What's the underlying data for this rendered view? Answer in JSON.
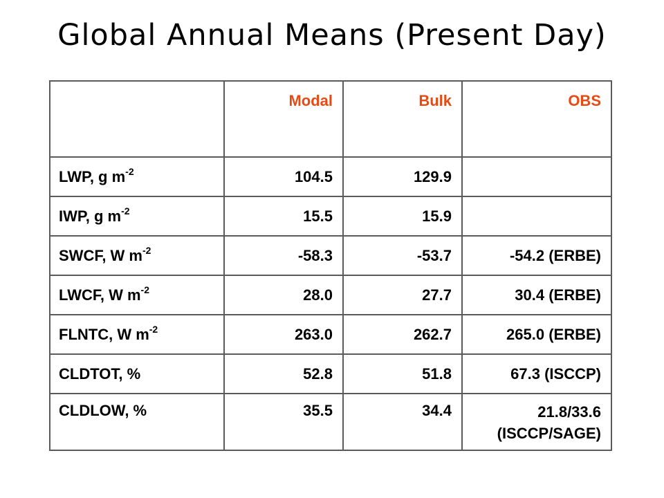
{
  "title": "Global Annual Means (Present Day)",
  "table": {
    "columns": [
      "",
      "Modal",
      "Bulk",
      "OBS"
    ],
    "header_color": "#e84a14",
    "rows": [
      {
        "label": "LWP, g m",
        "sup": "-2",
        "modal": "104.5",
        "bulk": "129.9",
        "obs": ""
      },
      {
        "label": "IWP, g m",
        "sup": "-2",
        "modal": "15.5",
        "bulk": "15.9",
        "obs": ""
      },
      {
        "label": "SWCF, W m",
        "sup": "-2",
        "modal": "-58.3",
        "bulk": "-53.7",
        "obs": "-54.2 (ERBE)"
      },
      {
        "label": "LWCF, W m",
        "sup": "-2",
        "modal": "28.0",
        "bulk": "27.7",
        "obs": "30.4 (ERBE)"
      },
      {
        "label": "FLNTC, W m",
        "sup": "-2",
        "modal": "263.0",
        "bulk": "262.7",
        "obs": "265.0 (ERBE)"
      },
      {
        "label": "CLDTOT, %",
        "sup": "",
        "modal": "52.8",
        "bulk": "51.8",
        "obs": "67.3 (ISCCP)"
      },
      {
        "label": "CLDLOW, %",
        "sup": "",
        "modal": "35.5",
        "bulk": "34.4",
        "obs": "21.8/33.6",
        "obs_line2": "(ISCCP/SAGE)"
      }
    ]
  }
}
